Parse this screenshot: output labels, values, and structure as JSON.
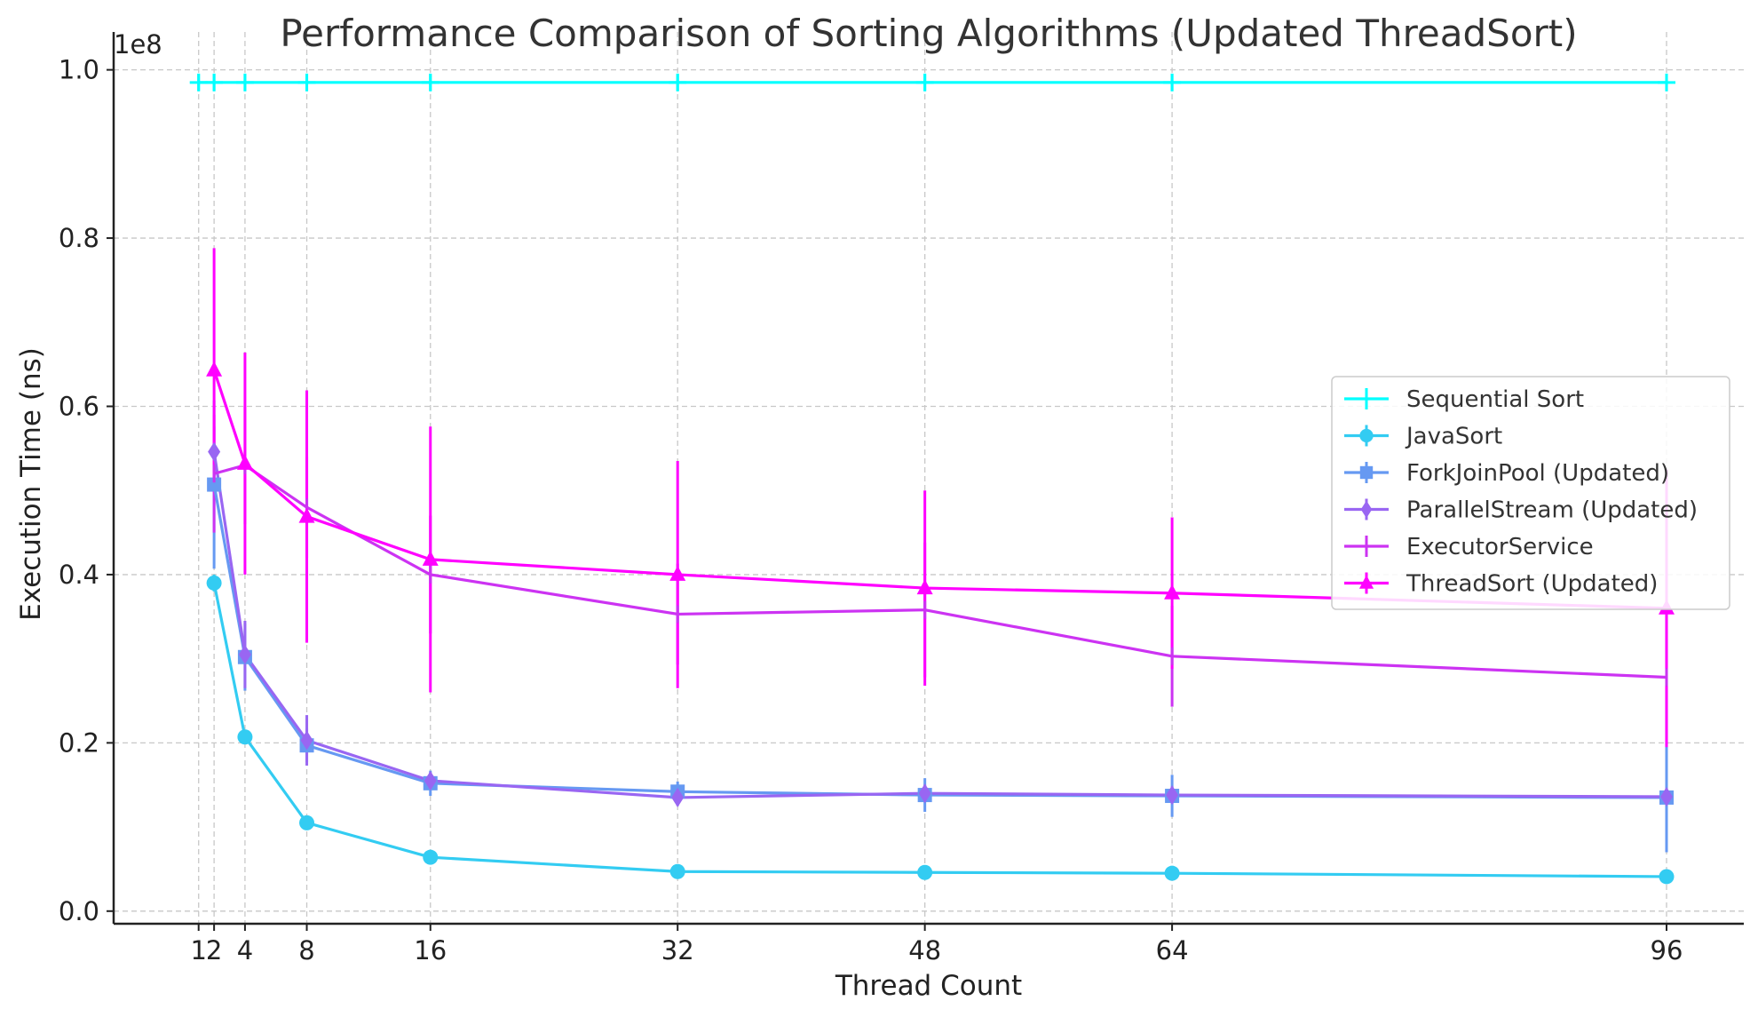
{
  "chart_data": {
    "type": "line",
    "title": "Performance Comparison of Sorting Algorithms (Updated ThreadSort)",
    "xlabel": "Thread Count",
    "ylabel": "Execution Time (ns)",
    "y_offset_label": "1e8",
    "x_ticks": [
      1,
      2,
      4,
      8,
      16,
      32,
      48,
      64,
      96
    ],
    "x_tick_labels": [
      "1",
      "2",
      "4",
      "8",
      "16",
      "32",
      "48",
      "64",
      "96"
    ],
    "y_ticks": [
      0.0,
      0.2,
      0.4,
      0.6,
      0.8,
      1.0
    ],
    "y_tick_labels": [
      "0.0",
      "0.2",
      "0.4",
      "0.6",
      "0.8",
      "1.0"
    ],
    "xlim": [
      -4.5,
      101
    ],
    "ylim": [
      -0.015,
      1.045
    ],
    "grid": true,
    "legend_position": "center-right",
    "x": [
      1,
      2,
      4,
      8,
      16,
      32,
      48,
      64,
      96
    ],
    "series": [
      {
        "name": "Sequential Sort",
        "color": "#00ffff",
        "marker": "plus",
        "values": [
          0.985,
          0.985,
          0.985,
          0.985,
          0.985,
          0.985,
          0.985,
          0.985,
          0.985
        ],
        "errors": [
          0.01,
          0.01,
          0.01,
          0.01,
          0.01,
          0.01,
          0.01,
          0.01,
          0.01
        ]
      },
      {
        "name": "JavaSort",
        "color": "#33ccf2",
        "marker": "circle",
        "values": [
          null,
          0.39,
          0.207,
          0.105,
          0.064,
          0.047,
          0.046,
          0.045,
          0.041
        ],
        "errors": [
          null,
          0.01,
          0.005,
          0.004,
          0.003,
          0.003,
          0.003,
          0.003,
          0.003
        ]
      },
      {
        "name": "ForkJoinPool (Updated)",
        "color": "#6699f2",
        "marker": "square",
        "values": [
          null,
          0.507,
          0.302,
          0.197,
          0.152,
          0.142,
          0.138,
          0.137,
          0.135
        ],
        "errors": [
          null,
          0.1,
          0.04,
          0.02,
          0.015,
          0.012,
          0.02,
          0.025,
          0.065
        ]
      },
      {
        "name": "ParallelStream (Updated)",
        "color": "#9966f2",
        "marker": "diamond",
        "values": [
          null,
          0.546,
          0.305,
          0.203,
          0.155,
          0.135,
          0.14,
          0.138,
          0.136
        ],
        "errors": [
          null,
          0.03,
          0.04,
          0.03,
          0.01,
          0.01,
          0.01,
          0.01,
          0.01
        ]
      },
      {
        "name": "ExecutorService",
        "color": "#cc33f2",
        "marker": "vline",
        "values": [
          null,
          0.52,
          0.53,
          0.48,
          0.4,
          0.353,
          0.358,
          0.303,
          0.278
        ],
        "errors": [
          null,
          0.07,
          0.07,
          0.06,
          0.07,
          0.06,
          0.08,
          0.06,
          0.08
        ]
      },
      {
        "name": "ThreadSort (Updated)",
        "color": "#ff00ff",
        "marker": "triangle",
        "values": [
          null,
          0.643,
          0.532,
          0.469,
          0.418,
          0.4,
          0.384,
          0.378,
          0.36
        ],
        "errors": [
          null,
          0.145,
          0.132,
          0.15,
          0.158,
          0.135,
          0.116,
          0.09,
          0.165
        ]
      }
    ]
  }
}
